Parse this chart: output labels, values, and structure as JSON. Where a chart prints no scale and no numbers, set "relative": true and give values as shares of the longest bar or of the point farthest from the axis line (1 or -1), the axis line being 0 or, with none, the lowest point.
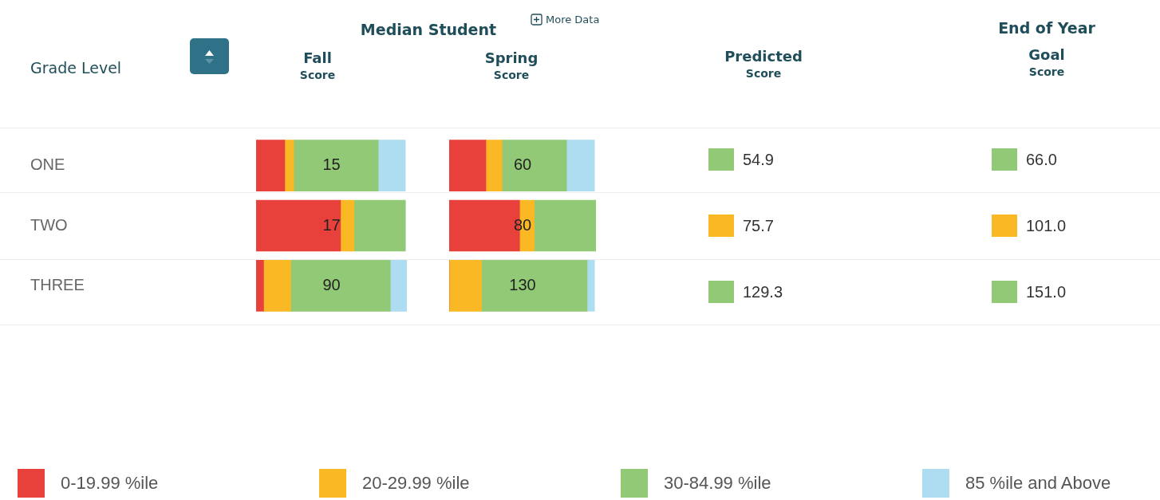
{
  "chart_data": [
    {
      "type": "bar",
      "title": "Fall",
      "subtitle": "Score",
      "ylabel": "Grade Level",
      "categories": [
        "ONE",
        "TWO",
        "THREE"
      ],
      "orientation": "horizontal",
      "stacked": true,
      "relative": true,
      "legend": "bottom",
      "series": [
        {
          "name": "0-19.99 %ile",
          "color": "#e8413b",
          "values": [
            0.19,
            0.56,
            0.05
          ]
        },
        {
          "name": "20-29.99 %ile",
          "color": "#f9b824",
          "values": [
            0.06,
            0.09,
            0.18
          ]
        },
        {
          "name": "30-84.99 %ile",
          "color": "#92c976",
          "values": [
            0.56,
            0.34,
            0.66
          ]
        },
        {
          "name": "85 %ile and Above",
          "color": "#aedcf0",
          "values": [
            0.18,
            0,
            0.11
          ]
        }
      ],
      "annotations": [
        "Median Student",
        "More Data",
        "15",
        "17",
        "90"
      ]
    },
    {
      "type": "bar",
      "title": "Spring",
      "subtitle": "Score",
      "categories": [
        null,
        null,
        null
      ],
      "orientation": "horizontal",
      "stacked": true,
      "relative": true,
      "series": [
        {
          "color": "#e8413b",
          "values": [
            0.25,
            0.48,
            0
          ]
        },
        {
          "color": "#f9b824",
          "values": [
            0.11,
            0.1,
            0.22
          ]
        },
        {
          "color": "#92c976",
          "values": [
            0.44,
            0.42,
            0.72
          ]
        },
        {
          "color": "#aedcf0",
          "values": [
            0.19,
            0,
            0.05
          ]
        }
      ],
      "annotations": [
        "60",
        "80",
        "130"
      ]
    },
    {
      "type": "other",
      "title": "Predicted",
      "subtitle": "Score",
      "annotations": [
        "54.9",
        "75.7",
        "129.3"
      ]
    },
    {
      "type": "other",
      "title": "Goal",
      "subtitle": "Score",
      "annotations": [
        "End of Year",
        "66.0",
        "101.0",
        "151.0"
      ]
    }
  ]
}
